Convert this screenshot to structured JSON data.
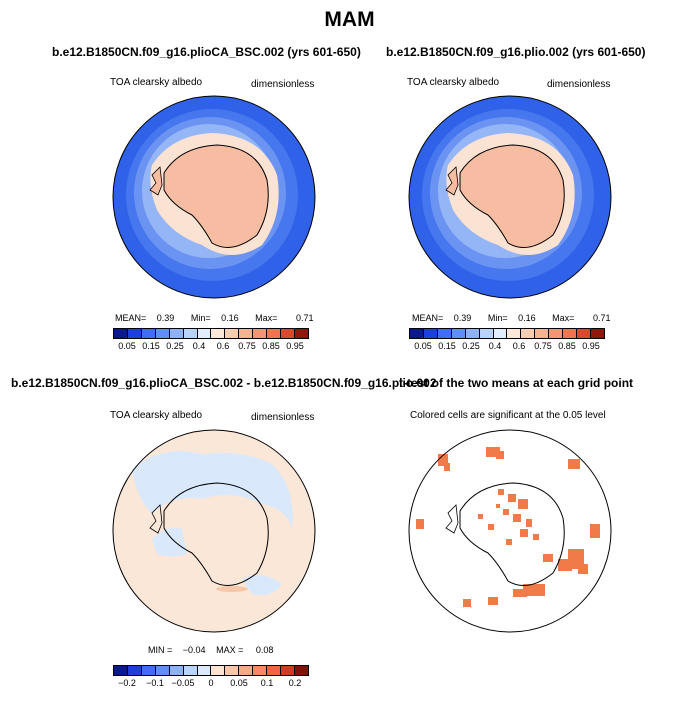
{
  "figure_title": "MAM",
  "panels": {
    "top_left": {
      "title": "b.e12.B1850CN.f09_g16.plioCA_BSC.002 (yrs 601-650)",
      "variable": "TOA clearsky albedo",
      "units": "dimensionless",
      "stats": {
        "mean_label": "MEAN=",
        "mean": "0.39",
        "min_label": "Min=",
        "min": "0.16",
        "max_label": "Max=",
        "max": "0.71"
      }
    },
    "top_right": {
      "title": "b.e12.B1850CN.f09_g16.plio.002 (yrs 601-650)",
      "variable": "TOA clearsky albedo",
      "units": "dimensionless",
      "stats": {
        "mean_label": "MEAN=",
        "mean": "0.39",
        "min_label": "Min=",
        "min": "0.16",
        "max_label": "Max=",
        "max": "0.71"
      }
    },
    "bottom_left": {
      "title": "b.e12.B1850CN.f09_g16.plioCA_BSC.002 - b.e12.B1850CN.f09_g16.plio.002",
      "variable": "TOA clearsky albedo",
      "units": "dimensionless",
      "stats": {
        "min_label": "MIN =",
        "min": "−0.04",
        "max_label": "MAX =",
        "max": "0.08"
      }
    },
    "bottom_right": {
      "title": "t-test of the two means at each grid point",
      "note": "Colored cells are significant at the 0.05 level"
    }
  },
  "colorbars": {
    "absolute": {
      "colors": [
        "#0a1a8c",
        "#1e3fd8",
        "#3f6ef0",
        "#5f8ff5",
        "#8cb3f8",
        "#b9d4fb",
        "#e2eefd",
        "#fde9da",
        "#f9cdb2",
        "#f6b394",
        "#f29775",
        "#ec7552",
        "#d44b2f",
        "#8b1a0c"
      ],
      "labels": [
        "0.05",
        "0.15",
        "0.25",
        "0.4",
        "0.6",
        "0.75",
        "0.85",
        "0.95"
      ]
    },
    "difference": {
      "colors": [
        "#0a1a8c",
        "#1e3fd8",
        "#3f6ef0",
        "#5f8ff5",
        "#8cb3f8",
        "#b9d4fb",
        "#dce9fc",
        "#fde4d2",
        "#f9c7a8",
        "#f6a983",
        "#f28c5e",
        "#ea6a3d",
        "#c9401f",
        "#7e1408"
      ],
      "labels": [
        "−0.2",
        "−0.1",
        "−0.05",
        "0",
        "0.05",
        "0.1",
        "0.2"
      ]
    }
  },
  "colors": {
    "ocean_far": "#2f62e8",
    "ocean_ring1": "#4677ee",
    "ocean_ring2": "#6b94f2",
    "ocean_ring3": "#95b6f6",
    "sea_ice": "#fbe3d4",
    "land": "#f6bda2",
    "diff_bg": "#fbe7d8",
    "diff_neg": "#d9e8fb",
    "ttest": "#f07a48"
  }
}
